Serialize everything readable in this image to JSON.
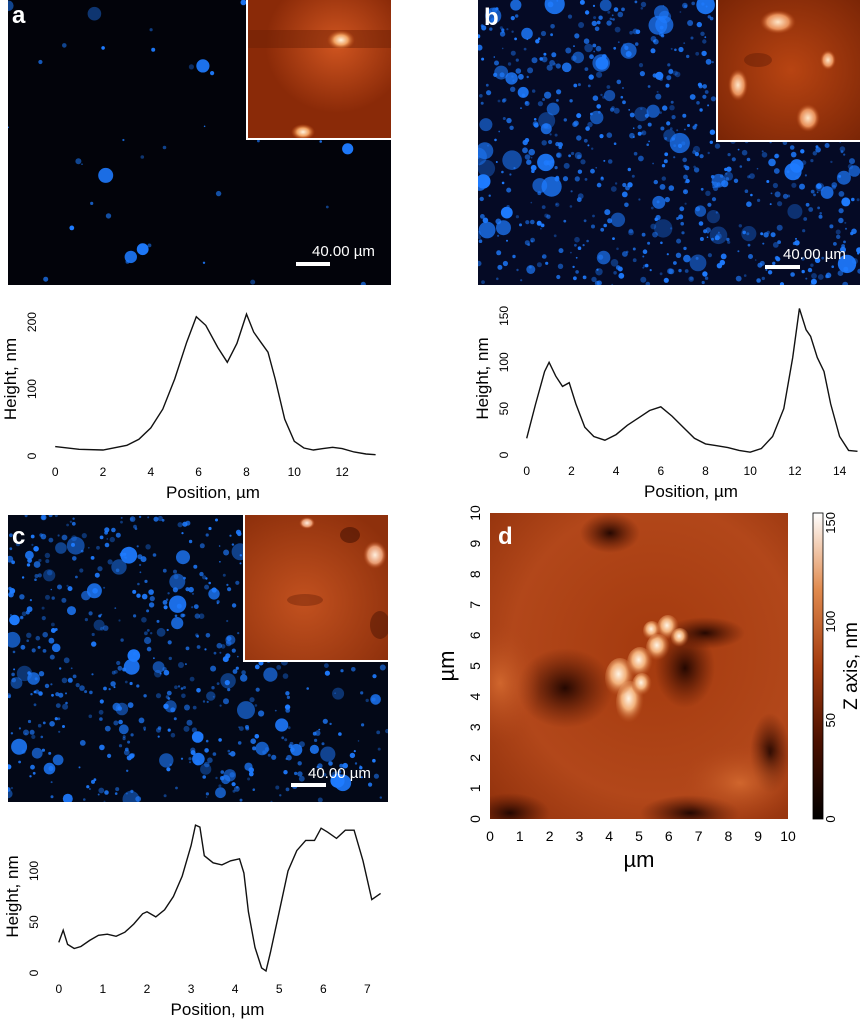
{
  "panels": {
    "a": {
      "letter": "a",
      "scale_label": "40.00 µm"
    },
    "b": {
      "letter": "b",
      "scale_label": "40.00 µm"
    },
    "c": {
      "letter": "c",
      "scale_label": "40.00 µm"
    },
    "d": {
      "letter": "d"
    }
  },
  "colors": {
    "particle_blue": "#1e7bff",
    "afm_dark": "#2a0700",
    "afm_mid": "#a83a10",
    "afm_light": "#ffe8c8",
    "line": "#111111"
  },
  "chart_data": [
    {
      "panel": "a",
      "type": "line",
      "xlabel": "Position, µm",
      "ylabel": "Height, nm",
      "xlim": [
        -0.3,
        13.5
      ],
      "ylim": [
        0,
        230
      ],
      "xticks": [
        0,
        2,
        4,
        6,
        8,
        10,
        12
      ],
      "yticks": [
        0,
        100,
        200
      ],
      "x": [
        0,
        1,
        2,
        3,
        3.5,
        4,
        4.5,
        5,
        5.5,
        5.9,
        6.3,
        6.8,
        7.2,
        7.6,
        8.0,
        8.3,
        8.6,
        8.9,
        9.2,
        9.6,
        10.0,
        10.4,
        10.8,
        11.2,
        11.6,
        12.0,
        12.5,
        13.0,
        13.4
      ],
      "y": [
        14,
        10,
        9,
        16,
        25,
        42,
        70,
        115,
        170,
        208,
        195,
        162,
        140,
        168,
        212,
        185,
        170,
        155,
        115,
        55,
        22,
        12,
        9,
        11,
        13,
        11,
        6,
        3,
        2
      ]
    },
    {
      "panel": "b",
      "type": "line",
      "xlabel": "Position, µm",
      "ylabel": "Height, nm",
      "xlim": [
        -0.3,
        15
      ],
      "ylim": [
        0,
        165
      ],
      "xticks": [
        0,
        2,
        4,
        6,
        8,
        10,
        12,
        14
      ],
      "yticks": [
        0,
        50,
        100,
        150
      ],
      "x": [
        0,
        0.4,
        0.8,
        1.0,
        1.3,
        1.6,
        1.9,
        2.2,
        2.6,
        3.0,
        3.5,
        4.0,
        4.5,
        5.0,
        5.5,
        6.0,
        6.5,
        7.0,
        7.5,
        8.0,
        8.5,
        9.0,
        9.5,
        10.0,
        10.5,
        11.0,
        11.5,
        11.9,
        12.2,
        12.5,
        12.7,
        13.0,
        13.3,
        13.6,
        14.0,
        14.4,
        14.8
      ],
      "y": [
        18,
        55,
        90,
        100,
        85,
        74,
        78,
        55,
        30,
        20,
        16,
        22,
        32,
        40,
        48,
        52,
        42,
        30,
        18,
        12,
        10,
        8,
        5,
        3,
        7,
        20,
        50,
        105,
        158,
        135,
        128,
        105,
        90,
        55,
        20,
        5,
        4
      ]
    },
    {
      "panel": "c",
      "type": "line",
      "xlabel": "Position, µm",
      "ylabel": "Height, nm",
      "xlim": [
        -0.2,
        7.4
      ],
      "ylim": [
        0,
        150
      ],
      "xticks": [
        0,
        1,
        2,
        3,
        4,
        5,
        6,
        7
      ],
      "yticks": [
        0,
        50,
        100
      ],
      "x": [
        0,
        0.1,
        0.2,
        0.35,
        0.5,
        0.7,
        0.9,
        1.1,
        1.3,
        1.5,
        1.7,
        1.9,
        2.0,
        2.2,
        2.4,
        2.6,
        2.8,
        3.0,
        3.1,
        3.2,
        3.3,
        3.5,
        3.7,
        3.9,
        4.1,
        4.2,
        4.3,
        4.45,
        4.6,
        4.7,
        4.8,
        5.0,
        5.2,
        5.4,
        5.6,
        5.8,
        5.95,
        6.1,
        6.3,
        6.5,
        6.7,
        6.9,
        7.1,
        7.3
      ],
      "y": [
        30,
        42,
        28,
        24,
        26,
        32,
        37,
        38,
        36,
        40,
        48,
        58,
        60,
        55,
        62,
        75,
        95,
        125,
        145,
        143,
        115,
        108,
        106,
        110,
        112,
        98,
        60,
        25,
        5,
        2,
        20,
        60,
        100,
        120,
        130,
        130,
        142,
        138,
        132,
        140,
        140,
        110,
        72,
        78
      ]
    },
    {
      "panel": "d",
      "type": "heatmap",
      "xlabel": "µm",
      "ylabel": "µm",
      "xlim": [
        0,
        10
      ],
      "ylim": [
        0,
        10
      ],
      "xticks": [
        0,
        1,
        2,
        3,
        4,
        5,
        6,
        7,
        8,
        9,
        10
      ],
      "yticks": [
        0,
        1,
        2,
        3,
        4,
        5,
        6,
        7,
        8,
        9,
        10
      ],
      "colorbar_label": "Z axis, nm",
      "colorbar_range": [
        0,
        155
      ],
      "colorbar_ticks": [
        0,
        50,
        100,
        150
      ]
    }
  ]
}
